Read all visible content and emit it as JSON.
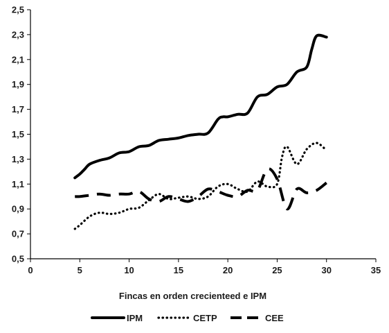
{
  "chart_data": {
    "type": "line",
    "title": "",
    "xlabel": "Fincas en orden crecienteed e IPM",
    "ylabel": "",
    "xlim": [
      0,
      35
    ],
    "ylim": [
      0.5,
      2.5
    ],
    "x_ticks": [
      "0",
      "5",
      "10",
      "15",
      "20",
      "25",
      "30",
      "35"
    ],
    "y_ticks": [
      "0,5",
      "0,7",
      "0,9",
      "1,1",
      "1,3",
      "1,5",
      "1,7",
      "1,9",
      "2,1",
      "2,3",
      "2,5"
    ],
    "grid": false,
    "legend_position": "bottom",
    "series": [
      {
        "name": "IPM",
        "color": "#000000",
        "style": "solid",
        "x": [
          4.5,
          5,
          5.5,
          6,
          7,
          8,
          9,
          10,
          11,
          12,
          13,
          14,
          15,
          16,
          17,
          18,
          19,
          19.5,
          20,
          21,
          22,
          23,
          24,
          25,
          26,
          27,
          28,
          28.5,
          29,
          30
        ],
        "y": [
          1.15,
          1.18,
          1.22,
          1.26,
          1.29,
          1.31,
          1.35,
          1.36,
          1.4,
          1.41,
          1.45,
          1.46,
          1.47,
          1.49,
          1.5,
          1.51,
          1.62,
          1.64,
          1.64,
          1.66,
          1.67,
          1.8,
          1.82,
          1.88,
          1.9,
          2.0,
          2.04,
          2.18,
          2.29,
          2.28
        ]
      },
      {
        "name": "CETP",
        "color": "#000000",
        "style": "dotted",
        "x": [
          4.5,
          5,
          6,
          7,
          8,
          9,
          10,
          11,
          12,
          13,
          14,
          15,
          16,
          17,
          18,
          19,
          20,
          21,
          22,
          23,
          24,
          25,
          25.5,
          26,
          27,
          28,
          29,
          30
        ],
        "y": [
          0.74,
          0.77,
          0.84,
          0.87,
          0.86,
          0.87,
          0.9,
          0.91,
          0.97,
          1.02,
          0.98,
          0.99,
          1.0,
          0.98,
          1.0,
          1.08,
          1.1,
          1.06,
          1.04,
          1.12,
          1.08,
          1.1,
          1.32,
          1.4,
          1.26,
          1.38,
          1.43,
          1.37
        ]
      },
      {
        "name": "CEE",
        "color": "#000000",
        "style": "dashed",
        "x": [
          4.5,
          5,
          6,
          7,
          8,
          9,
          10,
          11,
          12,
          13,
          14,
          15,
          16,
          17,
          18,
          19,
          20,
          21,
          22,
          23,
          24,
          25,
          26,
          27,
          28,
          29,
          30
        ],
        "y": [
          1.0,
          1.0,
          1.01,
          1.02,
          1.01,
          1.02,
          1.02,
          1.04,
          0.98,
          0.96,
          1.0,
          0.98,
          0.96,
          1.0,
          1.06,
          1.04,
          1.01,
          1.0,
          1.05,
          1.05,
          1.22,
          1.14,
          0.9,
          1.06,
          1.03,
          1.05,
          1.11
        ]
      }
    ]
  }
}
